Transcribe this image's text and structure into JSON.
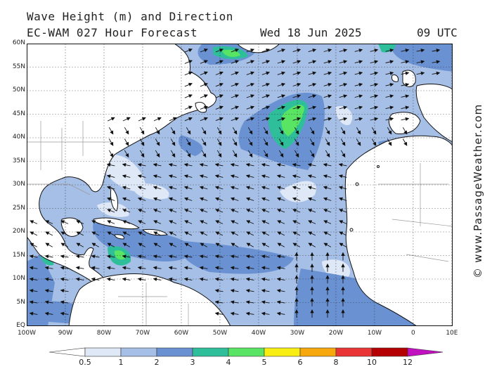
{
  "header": {
    "title_line1": "Wave Height (m) and Direction",
    "title_line2": "EC-WAM 027 Hour Forecast",
    "date": "Wed 18 Jun 2025",
    "time": "09 UTC"
  },
  "credit": "© www.PassageWeather.com",
  "map": {
    "lat_labels": [
      "60N",
      "55N",
      "50N",
      "45N",
      "40N",
      "35N",
      "30N",
      "25N",
      "20N",
      "15N",
      "10N",
      "5N",
      "EQ"
    ],
    "lon_labels": [
      "100W",
      "90W",
      "80W",
      "70W",
      "60W",
      "50W",
      "40W",
      "30W",
      "20W",
      "10W",
      "0",
      "10E"
    ],
    "lat_range": [
      0,
      60
    ],
    "lon_range": [
      -100,
      10
    ],
    "land_color": "#ffffff",
    "ocean_base_color": "#a6bfe6"
  },
  "legend": {
    "labels": [
      "0.5",
      "1",
      "2",
      "3",
      "4",
      "5",
      "6",
      "8",
      "10",
      "12"
    ],
    "colors": [
      "#ffffff",
      "#dfe8f6",
      "#a6bfe6",
      "#6a92d2",
      "#2ebf9a",
      "#5ae464",
      "#f9ee12",
      "#f7a80c",
      "#e93634",
      "#b40000",
      "#c010c0"
    ]
  }
}
